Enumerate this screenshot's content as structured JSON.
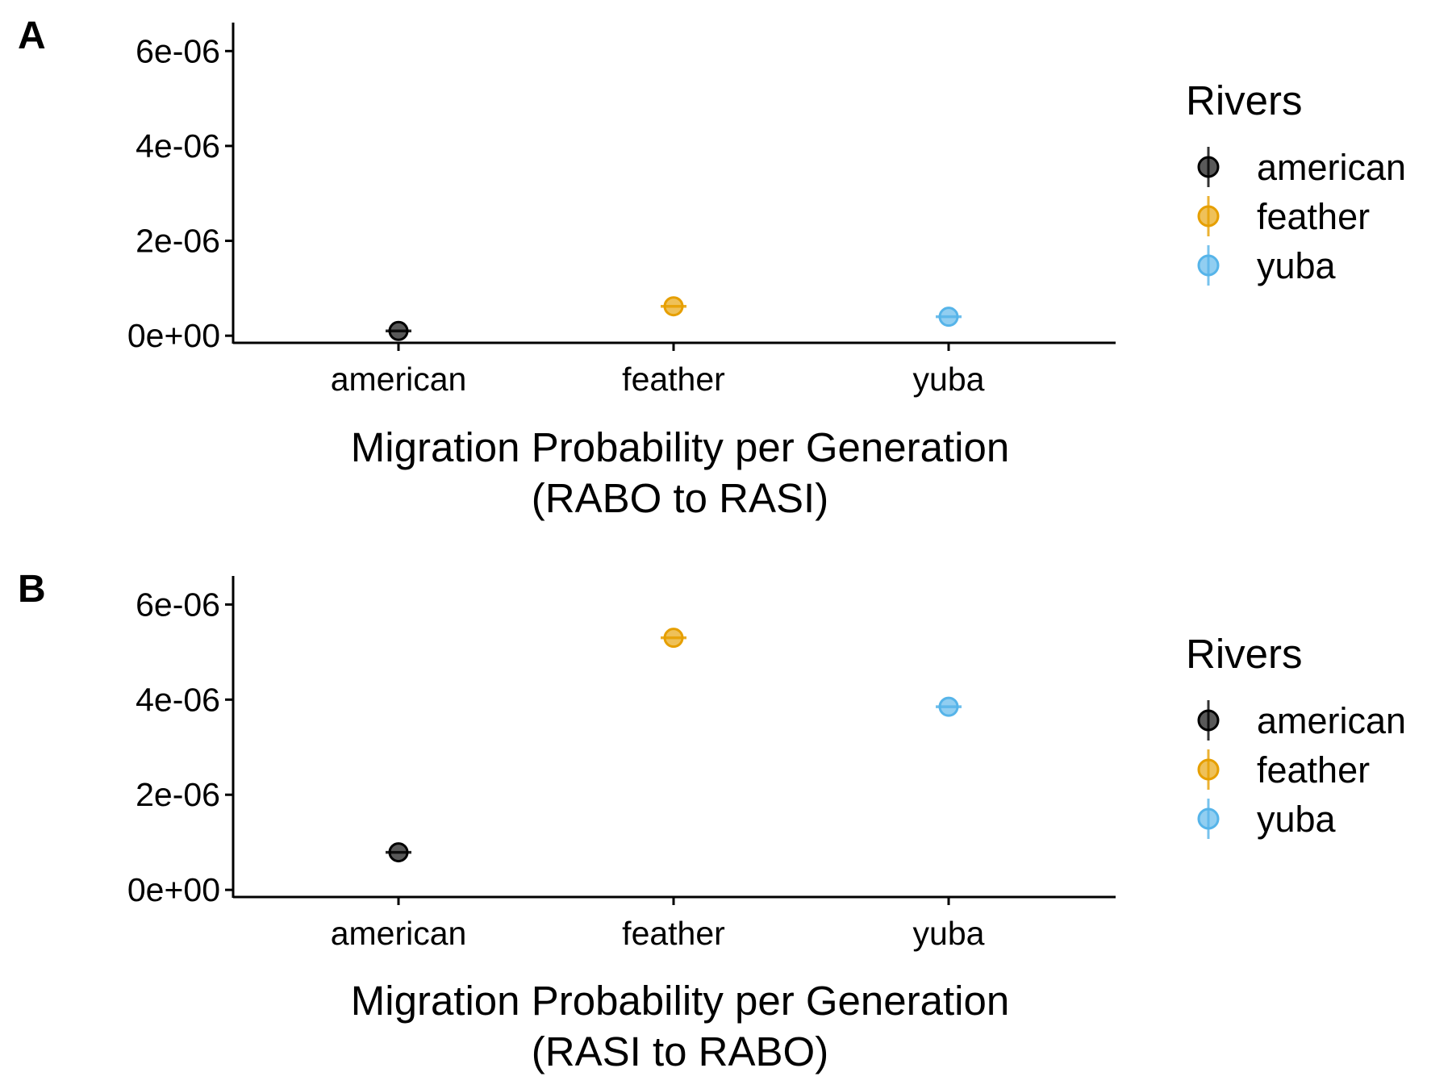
{
  "legend_colors": {
    "american": "#000000",
    "feather": "#E69F00",
    "yuba": "#56B4E9"
  },
  "chart_data": [
    {
      "type": "scatter",
      "panel_label": "A",
      "categories": [
        "american",
        "feather",
        "yuba"
      ],
      "values": [
        1e-07,
        6.2e-07,
        4e-07
      ],
      "xlabel_line1": "Migration Probability per Generation",
      "xlabel_line2": "(RABO to RASI)",
      "ylabel": "",
      "ylim": [
        -1.5e-07,
        6.6e-06
      ],
      "yticks": [
        0,
        2e-06,
        4e-06,
        6e-06
      ],
      "ytick_labels": [
        "0e+00",
        "2e-06",
        "4e-06",
        "6e-06"
      ],
      "legend": {
        "title": "Rivers",
        "placement": "right",
        "entries": [
          "american",
          "feather",
          "yuba"
        ]
      },
      "grid": false
    },
    {
      "type": "scatter",
      "panel_label": "B",
      "categories": [
        "american",
        "feather",
        "yuba"
      ],
      "values": [
        7.9e-07,
        5.3e-06,
        3.85e-06
      ],
      "xlabel_line1": "Migration Probability per Generation",
      "xlabel_line2": "(RASI to RABO)",
      "ylabel": "",
      "ylim": [
        -1.5e-07,
        6.6e-06
      ],
      "yticks": [
        0,
        2e-06,
        4e-06,
        6e-06
      ],
      "ytick_labels": [
        "0e+00",
        "2e-06",
        "4e-06",
        "6e-06"
      ],
      "legend": {
        "title": "Rivers",
        "placement": "right",
        "entries": [
          "american",
          "feather",
          "yuba"
        ]
      },
      "grid": false
    }
  ]
}
